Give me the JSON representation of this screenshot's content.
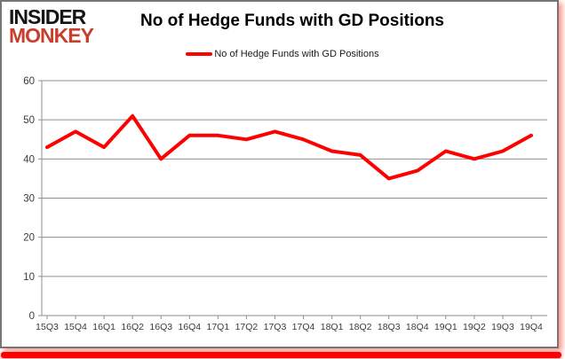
{
  "logo": {
    "line1": "INSIDER",
    "line2": "MONKEY",
    "accent_color": "#c7402f"
  },
  "header": {
    "title": "No of Hedge Funds with GD Positions"
  },
  "legend": {
    "label": "No of Hedge Funds with GD Positions",
    "line_color": "#ff0000"
  },
  "frame": {
    "border_color": "#757575",
    "bottom_bar_color": "#ff0000"
  },
  "chart_data": {
    "type": "line",
    "title": "No of Hedge Funds with GD Positions",
    "categories": [
      "15Q3",
      "15Q4",
      "16Q1",
      "16Q2",
      "16Q3",
      "16Q4",
      "17Q1",
      "17Q2",
      "17Q3",
      "17Q4",
      "18Q1",
      "18Q2",
      "18Q3",
      "18Q4",
      "19Q1",
      "19Q2",
      "19Q3",
      "19Q4"
    ],
    "series": [
      {
        "name": "No of Hedge Funds with GD Positions",
        "color": "#ff0000",
        "values": [
          43,
          47,
          43,
          51,
          40,
          46,
          46,
          45,
          47,
          45,
          42,
          41,
          35,
          37,
          42,
          40,
          42,
          46
        ]
      }
    ],
    "xlabel": "",
    "ylabel": "",
    "ylim": [
      0,
      60
    ],
    "yticks": [
      0,
      10,
      20,
      30,
      40,
      50,
      60
    ],
    "grid": true,
    "grid_color": "#8f8f8f",
    "axis_color": "#8f8f8f",
    "tick_label_color": "#3a3a3a",
    "legend_position": "top"
  }
}
